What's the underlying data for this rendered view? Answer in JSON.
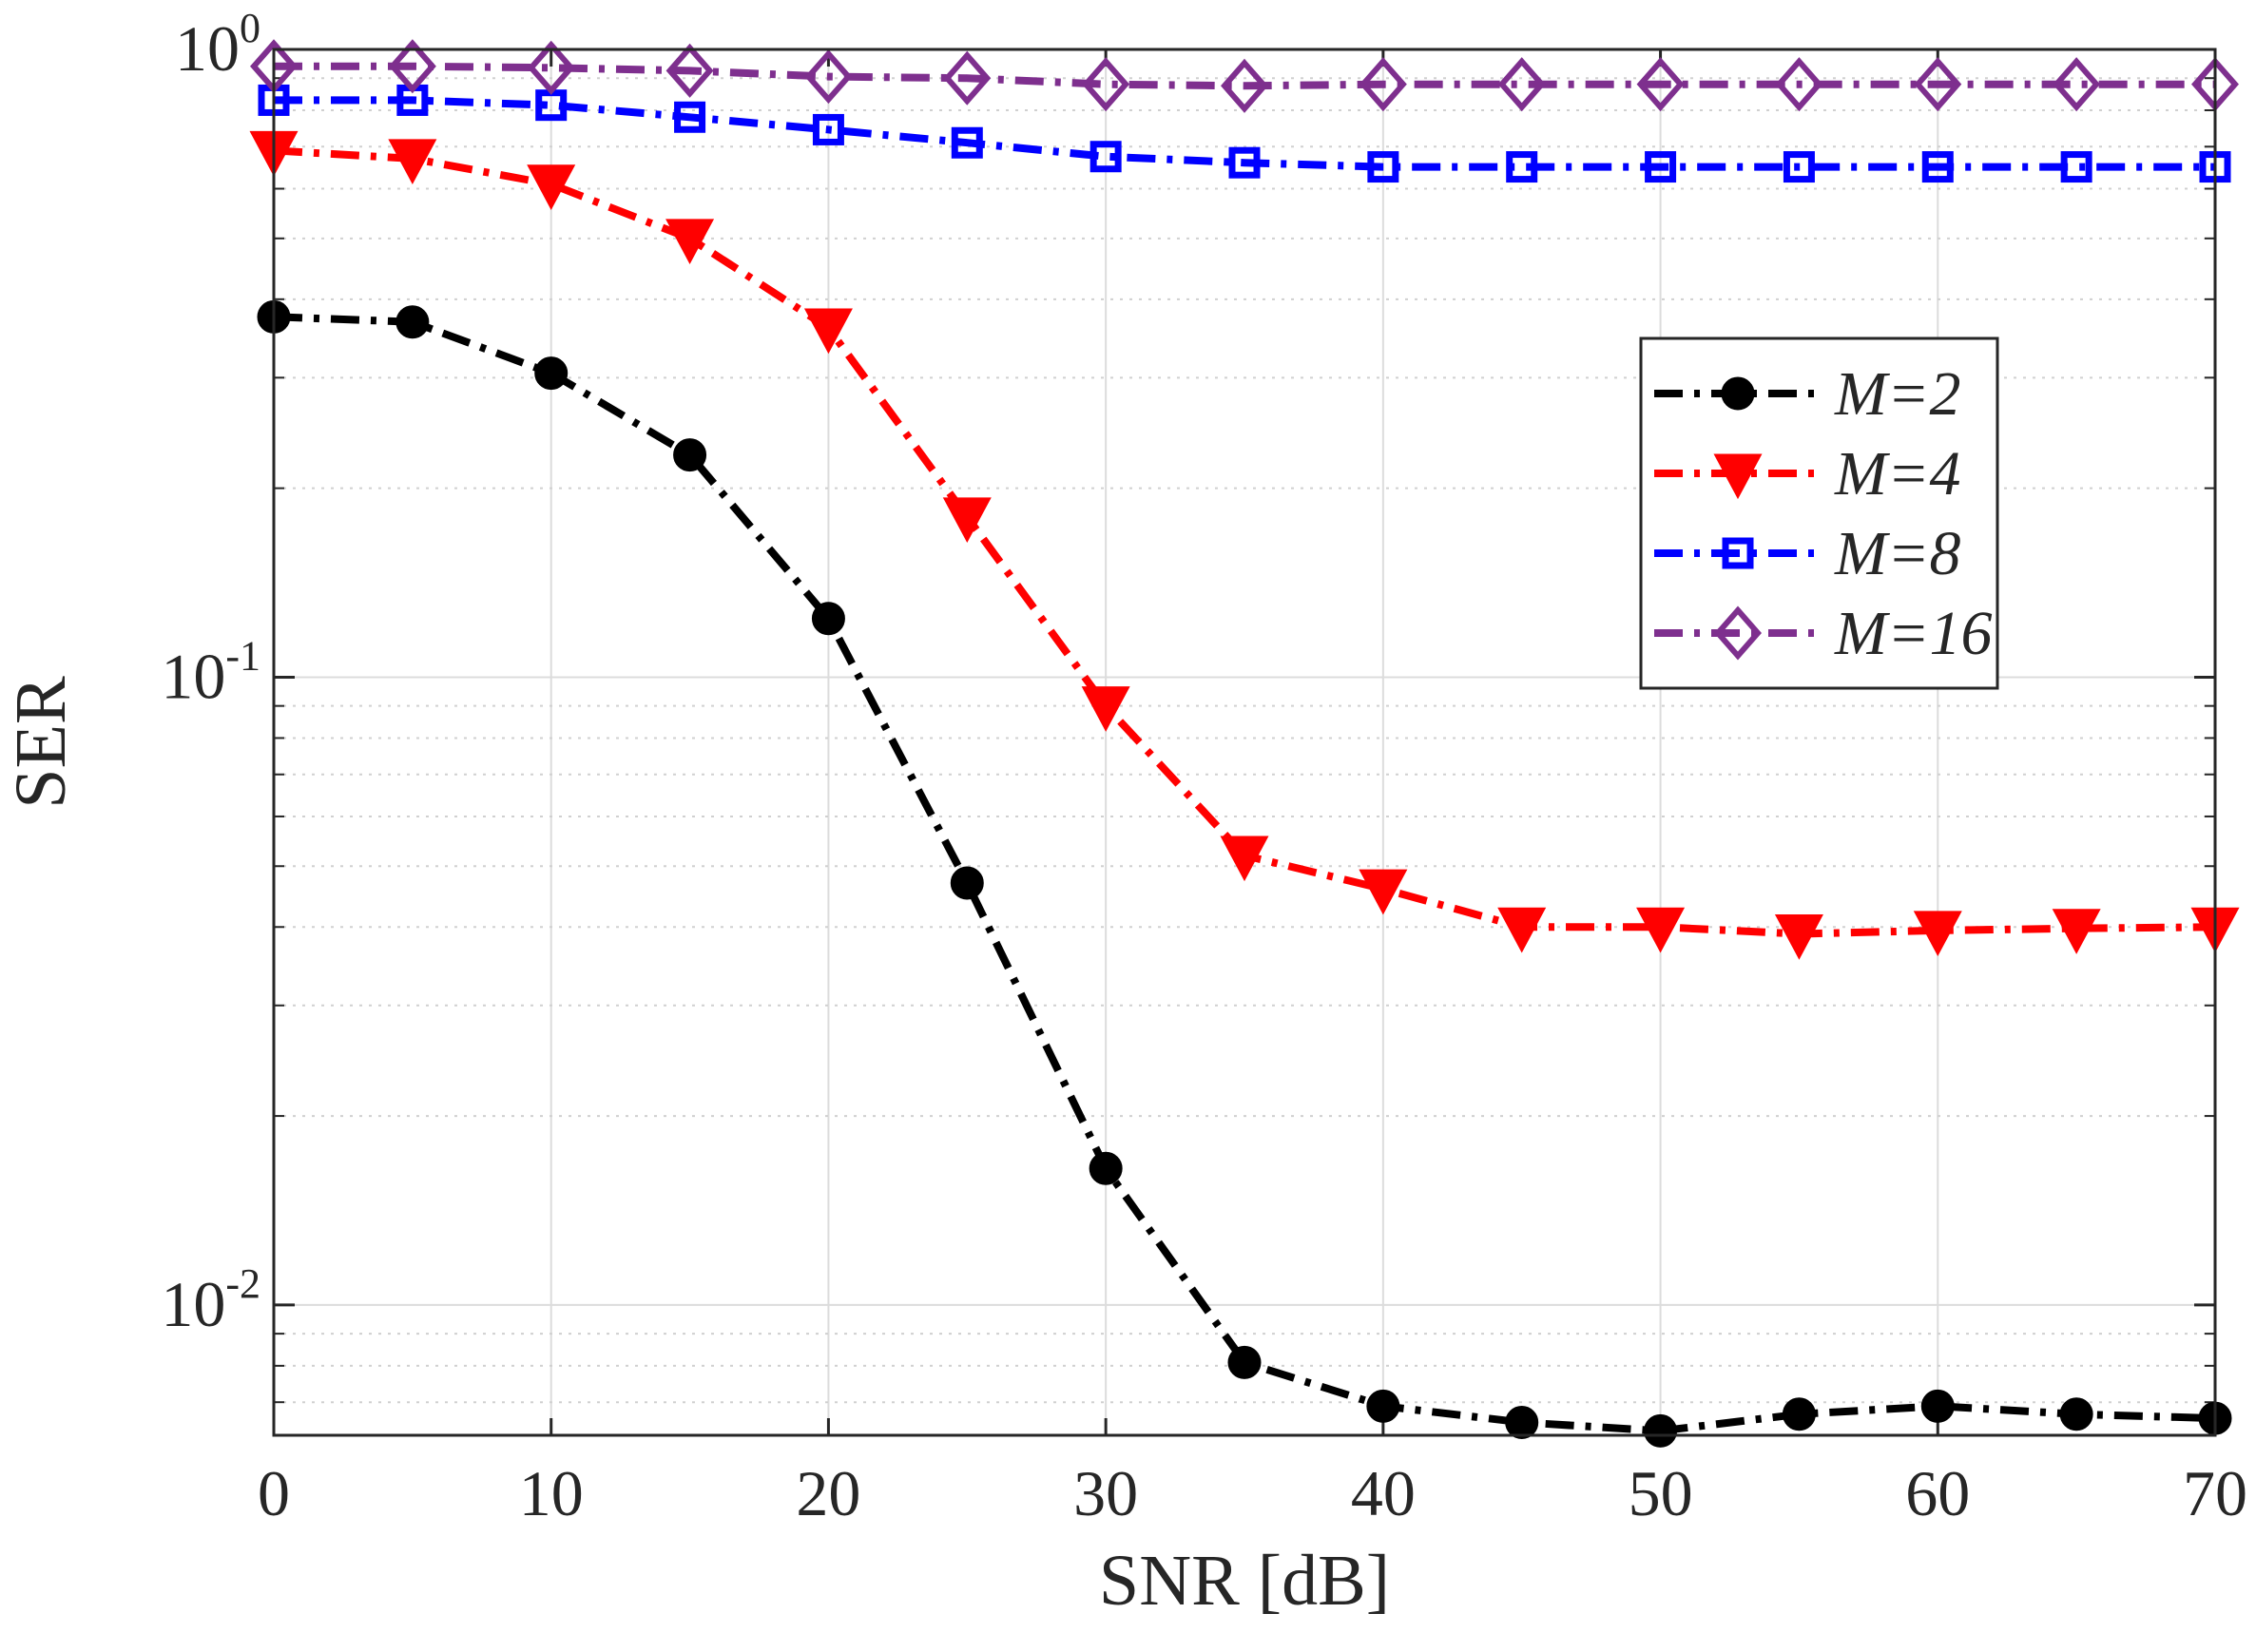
{
  "chart_data": {
    "type": "line",
    "x_scale": "linear",
    "y_scale": "log",
    "xlabel": "SNR [dB]",
    "ylabel": "SER",
    "xlim": [
      0,
      70
    ],
    "ylim": [
      0.0062,
      1
    ],
    "grid": true,
    "legend_position": "upper-right",
    "x_ticks": [
      0,
      10,
      20,
      30,
      40,
      50,
      60,
      70
    ],
    "x_tick_labels": [
      "0",
      "10",
      "20",
      "30",
      "40",
      "50",
      "60",
      "70"
    ],
    "y_ticks": [
      {
        "value": 1,
        "base": "10",
        "exp": "0"
      },
      {
        "value": 0.1,
        "base": "10",
        "exp": "-1"
      },
      {
        "value": 0.01,
        "base": "10",
        "exp": "-2"
      }
    ],
    "x": [
      0,
      5,
      10,
      15,
      20,
      25,
      30,
      35,
      40,
      45,
      50,
      55,
      60,
      65,
      70
    ],
    "series": [
      {
        "name": "M=2",
        "label_var": "M",
        "label_val": "=2",
        "color": "#000000",
        "marker": "circle",
        "values": [
          0.375,
          0.368,
          0.305,
          0.226,
          0.124,
          0.047,
          0.0165,
          0.0081,
          0.0069,
          0.0065,
          0.0063,
          0.0067,
          0.0069,
          0.0067,
          0.0066
        ]
      },
      {
        "name": "M=4",
        "label_var": "M",
        "label_val": "=4",
        "color": "#ff0000",
        "marker": "triangle-down",
        "values": [
          0.69,
          0.67,
          0.61,
          0.5,
          0.36,
          0.18,
          0.09,
          0.052,
          0.046,
          0.04,
          0.04,
          0.039,
          0.0395,
          0.0398,
          0.04
        ]
      },
      {
        "name": "M=8",
        "label_var": "M",
        "label_val": "=8",
        "color": "#0000ff",
        "marker": "square",
        "values": [
          0.83,
          0.83,
          0.815,
          0.78,
          0.745,
          0.71,
          0.675,
          0.66,
          0.65,
          0.65,
          0.65,
          0.65,
          0.65,
          0.65,
          0.65
        ]
      },
      {
        "name": "M=16",
        "label_var": "M",
        "label_val": "=16",
        "color": "#7e2f8e",
        "marker": "diamond",
        "values": [
          0.94,
          0.94,
          0.935,
          0.925,
          0.905,
          0.9,
          0.88,
          0.875,
          0.88,
          0.88,
          0.88,
          0.88,
          0.88,
          0.88,
          0.88
        ]
      }
    ]
  }
}
